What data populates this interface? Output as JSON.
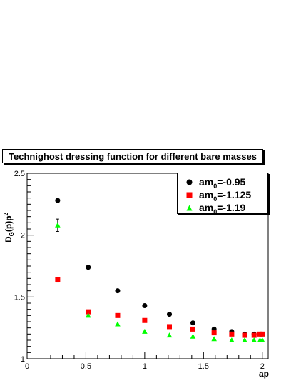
{
  "chart_data": {
    "type": "scatter",
    "title": "Technighost dressing function for different bare masses",
    "ylabel_main": "D",
    "ylabel_sub": "G",
    "ylabel_rest": "(p)p",
    "ylabel_sup": "2",
    "xlabel": "ap",
    "xlim": [
      0,
      2.05
    ],
    "ylim": [
      1,
      2.5
    ],
    "xticks": [
      0,
      0.5,
      1,
      1.5,
      2
    ],
    "xtick_labels": [
      "0",
      "0.5",
      "1",
      "1.5",
      "2"
    ],
    "yticks": [
      1,
      1.5,
      2,
      2.5
    ],
    "ytick_labels": [
      "1",
      "1.5",
      "2",
      "2.5"
    ],
    "legend_position": "top-right",
    "series": [
      {
        "name_prefix": "am",
        "name_sub": "0",
        "name_suffix": "=-0.95",
        "marker": "circle",
        "color": "#000000",
        "x": [
          0.26,
          0.52,
          0.77,
          1.0,
          1.21,
          1.41,
          1.59,
          1.74,
          1.85,
          1.93,
          1.98,
          2.0
        ],
        "y": [
          2.28,
          1.74,
          1.55,
          1.43,
          1.36,
          1.29,
          1.24,
          1.22,
          1.2,
          1.2,
          1.2,
          1.2
        ]
      },
      {
        "name_prefix": "am",
        "name_sub": "0",
        "name_suffix": "=-1.125",
        "marker": "square",
        "color": "#ff0000",
        "x": [
          0.26,
          0.52,
          0.77,
          1.0,
          1.21,
          1.41,
          1.59,
          1.74,
          1.85,
          1.93,
          1.98,
          2.0
        ],
        "y": [
          1.64,
          1.38,
          1.35,
          1.31,
          1.26,
          1.24,
          1.21,
          1.2,
          1.19,
          1.19,
          1.2,
          1.2
        ]
      },
      {
        "name_prefix": "am",
        "name_sub": "0",
        "name_suffix": "=-1.19",
        "marker": "triangle",
        "color": "#00ff00",
        "x": [
          0.26,
          0.52,
          0.77,
          1.0,
          1.21,
          1.41,
          1.59,
          1.74,
          1.85,
          1.93,
          1.98,
          2.0
        ],
        "y": [
          2.08,
          1.35,
          1.28,
          1.22,
          1.19,
          1.18,
          1.16,
          1.15,
          1.15,
          1.15,
          1.15,
          1.15
        ]
      }
    ],
    "error_bars": [
      {
        "series": 1,
        "x": 0.26,
        "y": 1.64,
        "err": 0.02
      },
      {
        "series": 2,
        "x": 0.26,
        "y": 2.08,
        "err": 0.05
      }
    ]
  }
}
